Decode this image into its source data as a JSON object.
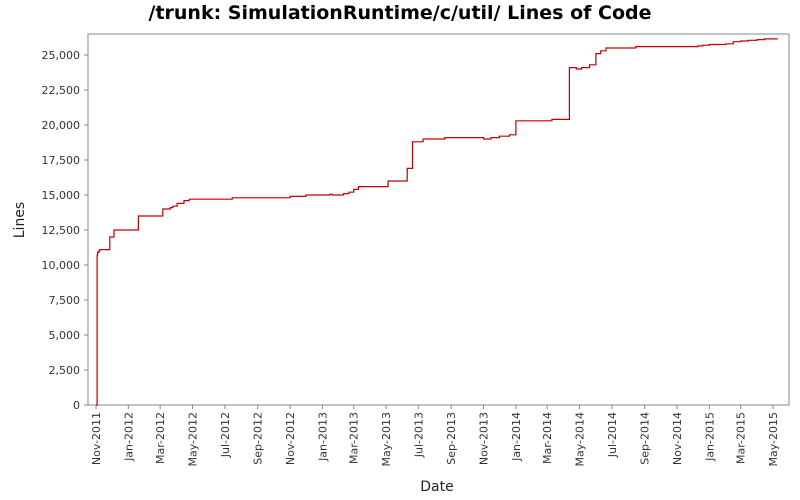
{
  "chart_data": {
    "type": "line",
    "title": "/trunk: SimulationRuntime/c/util/ Lines of Code",
    "xlabel": "Date",
    "ylabel": "Lines",
    "x_ticks": [
      "Nov-2011",
      "Jan-2012",
      "Mar-2012",
      "May-2012",
      "Jul-2012",
      "Sep-2012",
      "Nov-2012",
      "Jan-2013",
      "Mar-2013",
      "May-2013",
      "Jul-2013",
      "Sep-2013",
      "Nov-2013",
      "Jan-2014",
      "Mar-2014",
      "May-2014",
      "Jul-2014",
      "Sep-2014",
      "Nov-2014",
      "Jan-2015",
      "Mar-2015",
      "May-2015"
    ],
    "y_ticks": [
      "0",
      "2,500",
      "5,000",
      "7,500",
      "10,000",
      "12,500",
      "15,000",
      "17,500",
      "20,000",
      "22,500",
      "25,000"
    ],
    "ylim": [
      0,
      26500
    ],
    "grid": false,
    "legend": "none",
    "line_color": "#c00000",
    "series": [
      {
        "x": [
          "2011-11-01",
          "2011-11-03",
          "2011-11-04",
          "2011-11-06",
          "2011-11-08",
          "2011-11-12",
          "2011-11-25",
          "2011-11-27",
          "2011-12-05",
          "2012-01-01",
          "2012-01-20",
          "2012-02-01",
          "2012-03-06",
          "2012-03-20",
          "2012-03-25",
          "2012-04-02",
          "2012-04-15",
          "2012-04-25",
          "2012-05-10",
          "2012-06-01",
          "2012-06-15",
          "2012-07-15",
          "2012-08-15",
          "2012-09-15",
          "2012-10-15",
          "2012-11-01",
          "2012-11-15",
          "2012-12-01",
          "2012-12-15",
          "2013-01-01",
          "2013-01-15",
          "2013-01-20",
          "2013-02-01",
          "2013-02-10",
          "2013-02-20",
          "2013-03-01",
          "2013-03-10",
          "2013-03-25",
          "2013-04-05",
          "2013-05-05",
          "2013-05-20",
          "2013-06-03",
          "2013-06-10",
          "2013-06-20",
          "2013-07-01",
          "2013-07-10",
          "2013-07-25",
          "2013-08-10",
          "2013-08-20",
          "2013-09-10",
          "2013-10-01",
          "2013-10-20",
          "2013-11-01",
          "2013-11-15",
          "2013-12-01",
          "2013-12-15",
          "2013-12-20",
          "2014-01-01",
          "2014-02-01",
          "2014-02-25",
          "2014-03-10",
          "2014-03-20",
          "2014-04-06",
          "2014-04-12",
          "2014-04-25",
          "2014-05-05",
          "2014-05-12",
          "2014-05-20",
          "2014-06-01",
          "2014-06-10",
          "2014-06-20",
          "2014-07-01",
          "2014-07-15",
          "2014-08-15",
          "2014-09-15",
          "2014-10-15",
          "2014-11-15",
          "2014-12-01",
          "2014-12-10",
          "2014-12-20",
          "2015-01-01",
          "2015-01-20",
          "2015-02-01",
          "2015-02-15",
          "2015-03-01",
          "2015-03-15",
          "2015-04-01",
          "2015-04-15",
          "2015-05-01",
          "2015-05-10"
        ],
        "y": [
          0,
          10700,
          10900,
          11000,
          11100,
          11100,
          11100,
          12000,
          12500,
          12500,
          13500,
          13500,
          14000,
          14100,
          14200,
          14400,
          14600,
          14700,
          14700,
          14700,
          14700,
          14800,
          14800,
          14800,
          14800,
          14900,
          14900,
          15000,
          15000,
          15000,
          15050,
          15000,
          15000,
          15100,
          15200,
          15400,
          15600,
          15600,
          15600,
          16000,
          16000,
          16000,
          16900,
          18800,
          18800,
          19000,
          19000,
          19000,
          19100,
          19100,
          19100,
          19100,
          19000,
          19100,
          19200,
          19200,
          19300,
          20300,
          20300,
          20300,
          20400,
          20400,
          20400,
          24100,
          24000,
          24100,
          24100,
          24300,
          25100,
          25300,
          25500,
          25500,
          25500,
          25600,
          25600,
          25600,
          25600,
          25600,
          25650,
          25700,
          25750,
          25750,
          25800,
          25950,
          26000,
          26050,
          26100,
          26150,
          26150,
          26150
        ]
      }
    ]
  }
}
